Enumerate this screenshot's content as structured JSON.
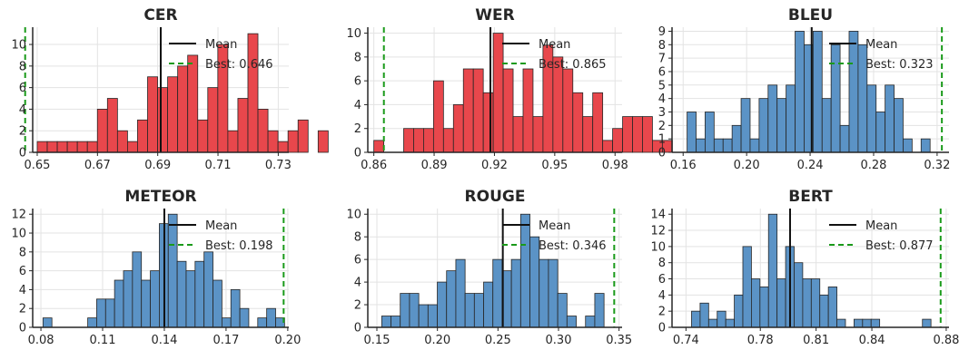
{
  "chart_data": [
    {
      "type": "bar",
      "title": "CER",
      "color": "#e8474c",
      "bin_width": 0.00333,
      "bin_start": 0.65,
      "counts": [
        1,
        1,
        1,
        1,
        1,
        1,
        4,
        5,
        2,
        1,
        3,
        7,
        6,
        7,
        8,
        9,
        3,
        6,
        10,
        2,
        5,
        11,
        4,
        2,
        1,
        2,
        3,
        0,
        2
      ],
      "mean": 0.691,
      "best": 0.646,
      "best_label": "Best: 0.646",
      "mean_label": "Mean",
      "xlim": [
        0.6485,
        0.7335
      ],
      "ylim": [
        0,
        11.6
      ],
      "xticks": [
        0.65,
        0.67,
        0.69,
        0.71,
        0.73
      ],
      "xtick_labels": [
        "0.65",
        "0.67",
        "0.69",
        "0.71",
        "0.73"
      ],
      "yticks": [
        0,
        2,
        4,
        6,
        8,
        10
      ],
      "grid": true,
      "legend_position": "top-right"
    },
    {
      "type": "bar",
      "title": "WER",
      "color": "#e8474c",
      "bin_width": 0.00495,
      "bin_start": 0.86,
      "counts": [
        1,
        0,
        0,
        2,
        2,
        2,
        6,
        2,
        4,
        7,
        7,
        5,
        10,
        7,
        3,
        7,
        3,
        9,
        8,
        7,
        5,
        3,
        5,
        1,
        2,
        3,
        3,
        3,
        1,
        1
      ],
      "mean": 0.918,
      "best": 0.865,
      "best_label": "Best: 0.865",
      "mean_label": "Mean",
      "xlim": [
        0.857,
        0.9835
      ],
      "ylim": [
        0,
        10.5
      ],
      "xticks": [
        0.86,
        0.89,
        0.92,
        0.95,
        0.98
      ],
      "xtick_labels": [
        "0.86",
        "0.89",
        "0.92",
        "0.95",
        "0.98"
      ],
      "yticks": [
        0,
        2,
        4,
        6,
        8,
        10
      ],
      "grid": true,
      "legend_position": "top-right"
    },
    {
      "type": "bar",
      "title": "BLEU",
      "color": "#5b93c6",
      "bin_width": 0.00567,
      "bin_start": 0.1625,
      "counts": [
        3,
        1,
        3,
        1,
        1,
        2,
        4,
        1,
        4,
        5,
        4,
        5,
        9,
        8,
        9,
        4,
        8,
        2,
        9,
        8,
        5,
        3,
        5,
        4,
        1,
        0,
        1
      ],
      "mean": 0.241,
      "best": 0.323,
      "best_label": "Best: 0.323",
      "mean_label": "Mean",
      "xlim": [
        0.153,
        0.3275
      ],
      "ylim": [
        0,
        9.3
      ],
      "xticks": [
        0.16,
        0.2,
        0.24,
        0.28,
        0.32
      ],
      "xtick_labels": [
        "0.16",
        "0.20",
        "0.24",
        "0.28",
        "0.32"
      ],
      "yticks": [
        0,
        1,
        2,
        3,
        4,
        5,
        6,
        7,
        8,
        9
      ],
      "grid": true,
      "legend_position": "top-right"
    },
    {
      "type": "bar",
      "title": "METEOR",
      "color": "#5b93c6",
      "bin_width": 0.00435,
      "bin_start": 0.081,
      "counts": [
        1,
        0,
        0,
        0,
        0,
        1,
        3,
        3,
        5,
        6,
        8,
        5,
        6,
        11,
        12,
        7,
        6,
        7,
        8,
        5,
        1,
        4,
        2,
        0,
        1,
        2,
        1
      ],
      "mean": 0.14,
      "best": 0.198,
      "best_label": "Best: 0.198",
      "mean_label": "Mean",
      "xlim": [
        0.076,
        0.2005
      ],
      "ylim": [
        0,
        12.6
      ],
      "xticks": [
        0.08,
        0.11,
        0.14,
        0.17,
        0.2
      ],
      "xtick_labels": [
        "0.08",
        "0.11",
        "0.14",
        "0.17",
        "0.20"
      ],
      "yticks": [
        0,
        2,
        4,
        6,
        8,
        10,
        12
      ],
      "grid": true,
      "legend_position": "top-right"
    },
    {
      "type": "bar",
      "title": "ROUGE",
      "color": "#5b93c6",
      "bin_width": 0.00765,
      "bin_start": 0.154,
      "counts": [
        1,
        1,
        3,
        3,
        2,
        2,
        4,
        5,
        6,
        3,
        3,
        4,
        6,
        5,
        6,
        10,
        8,
        6,
        6,
        3,
        1,
        0,
        1,
        3
      ],
      "mean": 0.254,
      "best": 0.346,
      "best_label": "Best: 0.346",
      "mean_label": "Mean",
      "xlim": [
        0.1425,
        0.3525
      ],
      "ylim": [
        0,
        10.5
      ],
      "xticks": [
        0.15,
        0.2,
        0.25,
        0.3,
        0.35
      ],
      "xtick_labels": [
        "0.15",
        "0.20",
        "0.25",
        "0.30",
        "0.35"
      ],
      "yticks": [
        0,
        2,
        4,
        6,
        8,
        10
      ],
      "grid": true,
      "legend_position": "top-right"
    },
    {
      "type": "bar",
      "title": "BERT",
      "color": "#5b93c6",
      "bin_width": 0.0046,
      "bin_start": 0.743,
      "counts": [
        2,
        3,
        1,
        2,
        1,
        4,
        10,
        6,
        5,
        14,
        6,
        10,
        8,
        6,
        6,
        4,
        5,
        1,
        0,
        1,
        1,
        1,
        0,
        0,
        0,
        0,
        0,
        1
      ],
      "mean": 0.796,
      "best": 0.877,
      "best_label": "Best: 0.877",
      "mean_label": "Mean",
      "xlim": [
        0.7325,
        0.8815
      ],
      "ylim": [
        0,
        14.7
      ],
      "xticks": [
        0.74,
        0.78,
        0.81,
        0.84,
        0.88
      ],
      "xtick_labels": [
        "0.74",
        "0.78",
        "0.81",
        "0.84",
        "0.88"
      ],
      "yticks": [
        0,
        2,
        4,
        6,
        8,
        10,
        12,
        14
      ],
      "grid": true,
      "legend_position": "top-right"
    }
  ]
}
